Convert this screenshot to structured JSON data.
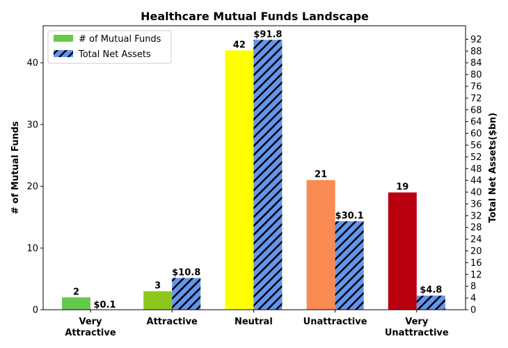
{
  "chart_data": {
    "type": "bar",
    "title": "Healthcare Mutual Funds Landscape",
    "categories": [
      [
        "Very",
        "Attractive"
      ],
      [
        "Attractive"
      ],
      [
        "Neutral"
      ],
      [
        "Unattractive"
      ],
      [
        "Very",
        "Unattractive"
      ]
    ],
    "series": [
      {
        "name": "# of Mutual Funds",
        "axis": "left",
        "values": [
          2,
          3,
          42,
          21,
          19
        ],
        "labels": [
          "2",
          "3",
          "42",
          "21",
          "19"
        ],
        "colors": [
          "#66c94f",
          "#8dc71e",
          "#ffff00",
          "#f98a51",
          "#b8000f"
        ],
        "legend_color": "#66c94f"
      },
      {
        "name": "Total Net Assets",
        "axis": "right",
        "values": [
          0.1,
          10.8,
          91.8,
          30.1,
          4.8
        ],
        "labels": [
          "$0.1",
          "$10.8",
          "$91.8",
          "$30.1",
          "$4.8"
        ],
        "color": "#6495ed",
        "hatch": "diagonal-black"
      }
    ],
    "ylabel_left": "# of Mutual Funds",
    "ylabel_right": "Total Net Assets($bn)",
    "ylim_left": [
      0,
      46
    ],
    "ylim_right": [
      0,
      96.6
    ],
    "yticks_left": [
      0,
      10,
      20,
      30,
      40
    ],
    "yticks_right": [
      0,
      4,
      8,
      12,
      16,
      20,
      24,
      28,
      32,
      36,
      40,
      44,
      48,
      52,
      56,
      60,
      64,
      68,
      72,
      76,
      80,
      84,
      88,
      92
    ],
    "legend_position": "upper-left",
    "grid": false
  }
}
